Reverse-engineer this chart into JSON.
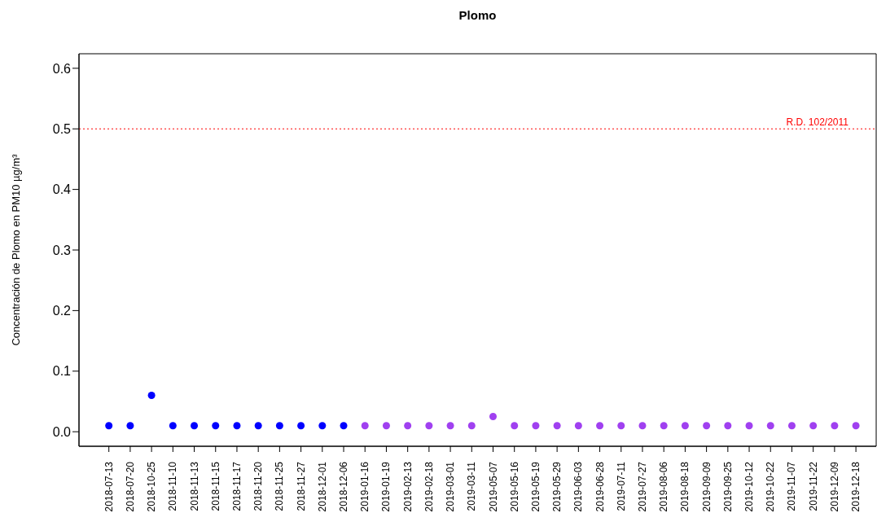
{
  "chart_data": {
    "type": "scatter",
    "title": "Plomo",
    "ylabel": "Concentración de Plomo en PM10 µg/m³",
    "categories": [
      "2018-07-13",
      "2018-07-20",
      "2018-10-25",
      "2018-11-10",
      "2018-11-13",
      "2018-11-15",
      "2018-11-17",
      "2018-11-20",
      "2018-11-25",
      "2018-11-27",
      "2018-12-01",
      "2018-12-06",
      "2019-01-16",
      "2019-01-19",
      "2019-02-13",
      "2019-02-18",
      "2019-03-01",
      "2019-03-11",
      "2019-05-07",
      "2019-05-16",
      "2019-05-19",
      "2019-05-29",
      "2019-06-03",
      "2019-06-28",
      "2019-07-11",
      "2019-07-27",
      "2019-08-06",
      "2019-08-18",
      "2019-09-09",
      "2019-09-25",
      "2019-10-12",
      "2019-10-22",
      "2019-11-07",
      "2019-11-22",
      "2019-12-09",
      "2019-12-18"
    ],
    "series": [
      {
        "color": "#0000ff",
        "values": [
          0.01,
          0.01,
          0.06,
          0.01,
          0.01,
          0.01,
          0.01,
          0.01,
          0.01,
          0.01,
          0.01,
          0.01,
          null,
          null,
          null,
          null,
          null,
          null,
          null,
          null,
          null,
          null,
          null,
          null,
          null,
          null,
          null,
          null,
          null,
          null,
          null,
          null,
          null,
          null,
          null,
          null
        ]
      },
      {
        "color": "#a040f0",
        "values": [
          null,
          null,
          null,
          null,
          null,
          null,
          null,
          null,
          null,
          null,
          null,
          null,
          0.01,
          0.01,
          0.01,
          0.01,
          0.01,
          0.01,
          0.025,
          0.01,
          0.01,
          0.01,
          0.01,
          0.01,
          0.01,
          0.01,
          0.01,
          0.01,
          0.01,
          0.01,
          0.01,
          0.01,
          0.01,
          0.01,
          0.01,
          0.01
        ]
      }
    ],
    "ylim": [
      -0.024,
      0.624
    ],
    "yticks": [
      {
        "value": 0,
        "label": "0.0"
      },
      {
        "value": 0.1,
        "label": "0.1"
      },
      {
        "value": 0.2,
        "label": "0.2"
      },
      {
        "value": 0.3,
        "label": "0.3"
      },
      {
        "value": 0.4,
        "label": "0.4"
      },
      {
        "value": 0.5,
        "label": "0.5"
      },
      {
        "value": 0.6,
        "label": "0.6"
      }
    ],
    "ref_lines": [
      {
        "axis": "y",
        "value": 0.5,
        "label": "R.D. 102/2011",
        "color": "#ff0000",
        "line_style": "dotted"
      }
    ],
    "grid": false,
    "marker": "circle"
  }
}
